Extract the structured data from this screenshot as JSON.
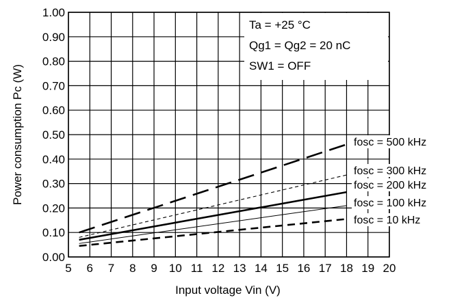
{
  "chart_data": {
    "type": "line",
    "xlabel": "Input voltage Vin (V)",
    "ylabel": "Power consumption Pc (W)",
    "xlim": [
      5,
      20
    ],
    "ylim": [
      0,
      1.0
    ],
    "xticks": [
      "5",
      "6",
      "7",
      "8",
      "9",
      "10",
      "11",
      "12",
      "13",
      "14",
      "15",
      "16",
      "17",
      "18",
      "19",
      "20"
    ],
    "yticks": [
      "0.00",
      "0.10",
      "0.20",
      "0.30",
      "0.40",
      "0.50",
      "0.60",
      "0.70",
      "0.80",
      "0.90",
      "1.00"
    ],
    "grid": true,
    "annotations": [
      "Ta = +25 °C",
      "Qg1 = Qg2 = 20 nC",
      "SW1 = OFF"
    ],
    "series": [
      {
        "name": "fosc = 500 kHz",
        "style": "long-dash-thick",
        "x": [
          5.5,
          18
        ],
        "y": [
          0.1,
          0.46
        ]
      },
      {
        "name": "fosc = 300 kHz",
        "style": "short-dash-thin",
        "x": [
          5.5,
          18
        ],
        "y": [
          0.08,
          0.335
        ]
      },
      {
        "name": "fosc = 200 kHz",
        "style": "solid-thick",
        "x": [
          5.5,
          18
        ],
        "y": [
          0.07,
          0.265
        ]
      },
      {
        "name": "fosc = 100 kHz",
        "style": "solid-thin",
        "x": [
          5.5,
          18
        ],
        "y": [
          0.055,
          0.21
        ]
      },
      {
        "name": "fosc = 10 kHz",
        "style": "dash-thick",
        "x": [
          5.5,
          18
        ],
        "y": [
          0.045,
          0.155
        ]
      }
    ]
  }
}
